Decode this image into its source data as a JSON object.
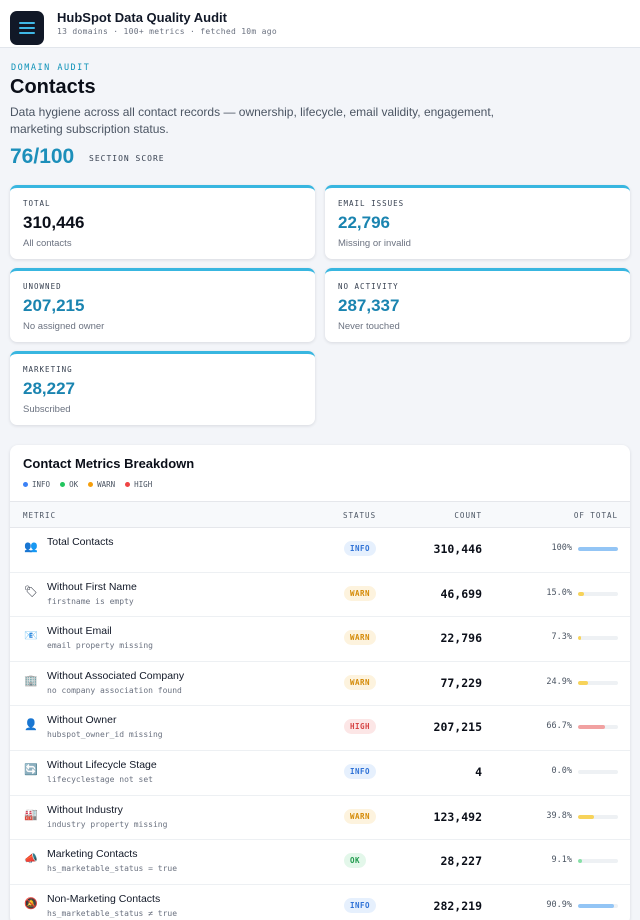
{
  "header": {
    "title": "HubSpot Data Quality Audit",
    "subtitle": "13 domains · 100+ metrics · fetched 10m ago",
    "menu_icon": "hamburger-menu-icon"
  },
  "section": {
    "eyebrow": "DOMAIN AUDIT",
    "title": "Contacts",
    "description": "Data hygiene across all contact records — ownership, lifecycle, email validity, engagement, marketing subscription status.",
    "score": "76/100",
    "score_label": "SECTION SCORE"
  },
  "cards": [
    {
      "label": "TOTAL",
      "value": "310,446",
      "sub": "All contacts"
    },
    {
      "label": "EMAIL ISSUES",
      "value": "22,796",
      "sub": "Missing or invalid"
    },
    {
      "label": "UNOWNED",
      "value": "207,215",
      "sub": "No assigned owner"
    },
    {
      "label": "NO ACTIVITY",
      "value": "287,337",
      "sub": "Never touched"
    },
    {
      "label": "MARKETING",
      "value": "28,227",
      "sub": "Subscribed"
    }
  ],
  "breakdown": {
    "title": "Contact Metrics Breakdown",
    "legend": [
      {
        "label": "INFO",
        "color": "#3b82f6"
      },
      {
        "label": "OK",
        "color": "#22c55e"
      },
      {
        "label": "WARN",
        "color": "#f59e0b"
      },
      {
        "label": "HIGH",
        "color": "#ef4444"
      }
    ],
    "columns": {
      "metric": "METRIC",
      "status": "STATUS",
      "count": "COUNT",
      "of_total": "OF TOTAL"
    },
    "status_colors": {
      "INFO": "#93c5f5",
      "OK": "#86e0a6",
      "WARN": "#f7d35a",
      "HIGH": "#f1a1a1"
    },
    "rows": [
      {
        "icon": "👥",
        "icon_name": "people-icon",
        "name": "Total Contacts",
        "desc": "",
        "status": "INFO",
        "count": "310,446",
        "pct": "100%",
        "fraction": 1.0
      },
      {
        "icon": "🏷",
        "icon_name": "tag-icon",
        "name": "Without First Name",
        "desc": "firstname is empty",
        "status": "WARN",
        "count": "46,699",
        "pct": "15.0%",
        "fraction": 0.15
      },
      {
        "icon": "📧",
        "icon_name": "email-icon",
        "name": "Without Email",
        "desc": "email property missing",
        "status": "WARN",
        "count": "22,796",
        "pct": "7.3%",
        "fraction": 0.073
      },
      {
        "icon": "🏢",
        "icon_name": "building-icon",
        "name": "Without Associated Company",
        "desc": "no company association found",
        "status": "WARN",
        "count": "77,229",
        "pct": "24.9%",
        "fraction": 0.249
      },
      {
        "icon": "👤",
        "icon_name": "person-icon",
        "name": "Without Owner",
        "desc": "hubspot_owner_id missing",
        "status": "HIGH",
        "count": "207,215",
        "pct": "66.7%",
        "fraction": 0.667
      },
      {
        "icon": "🔄",
        "icon_name": "cycle-icon",
        "name": "Without Lifecycle Stage",
        "desc": "lifecyclestage not set",
        "status": "INFO",
        "count": "4",
        "pct": "0.0%",
        "fraction": 0.0
      },
      {
        "icon": "🏭",
        "icon_name": "factory-icon",
        "name": "Without Industry",
        "desc": "industry property missing",
        "status": "WARN",
        "count": "123,492",
        "pct": "39.8%",
        "fraction": 0.398
      },
      {
        "icon": "📣",
        "icon_name": "megaphone-icon",
        "name": "Marketing Contacts",
        "desc": "hs_marketable_status = true",
        "status": "OK",
        "count": "28,227",
        "pct": "9.1%",
        "fraction": 0.091
      },
      {
        "icon": "🔕",
        "icon_name": "muted-megaphone-icon",
        "name": "Non-Marketing Contacts",
        "desc": "hs_marketable_status ≠ true",
        "status": "INFO",
        "count": "282,219",
        "pct": "90.9%",
        "fraction": 0.909
      }
    ]
  }
}
